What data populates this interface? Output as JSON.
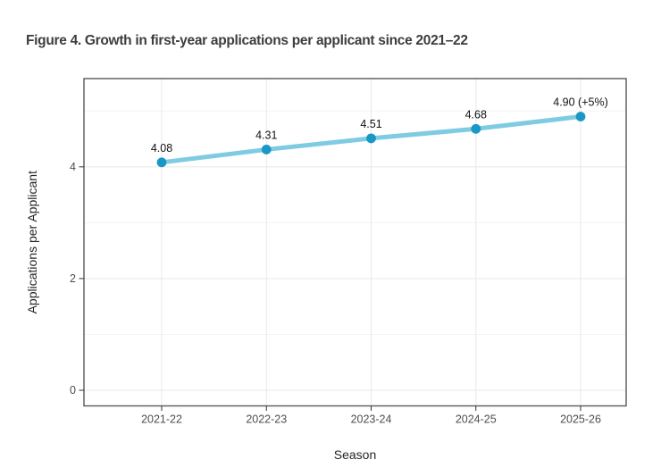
{
  "chart_data": {
    "type": "line",
    "title": "Figure 4. Growth in first-year applications per applicant since 2021–22",
    "categories": [
      "2021-22",
      "2022-23",
      "2023-24",
      "2024-25",
      "2025-26"
    ],
    "values": [
      4.08,
      4.31,
      4.51,
      4.68,
      4.9
    ],
    "point_labels": [
      "4.08",
      "4.31",
      "4.51",
      "4.68",
      "4.90 (+5%)"
    ],
    "xlabel": "Season",
    "ylabel": "Applications per Applicant",
    "yticks_major": [
      0,
      2,
      4
    ],
    "yticks_minor": [
      1,
      3,
      5
    ],
    "ylim": [
      -0.28,
      5.58
    ],
    "grid": "on",
    "legend": "none",
    "colors": {
      "line": "#7ecbe2",
      "point": "#1a97c5",
      "grid_major": "#e8e8e8",
      "grid_minor": "#f3f3f3",
      "panel_border": "#595959",
      "tick_mark": "#333333",
      "axis_text": "#4d4d4d",
      "axis_title": "#262626",
      "data_label": "#111111",
      "title_text": "#3d3d3d",
      "panel_bg": "#ffffff"
    }
  }
}
